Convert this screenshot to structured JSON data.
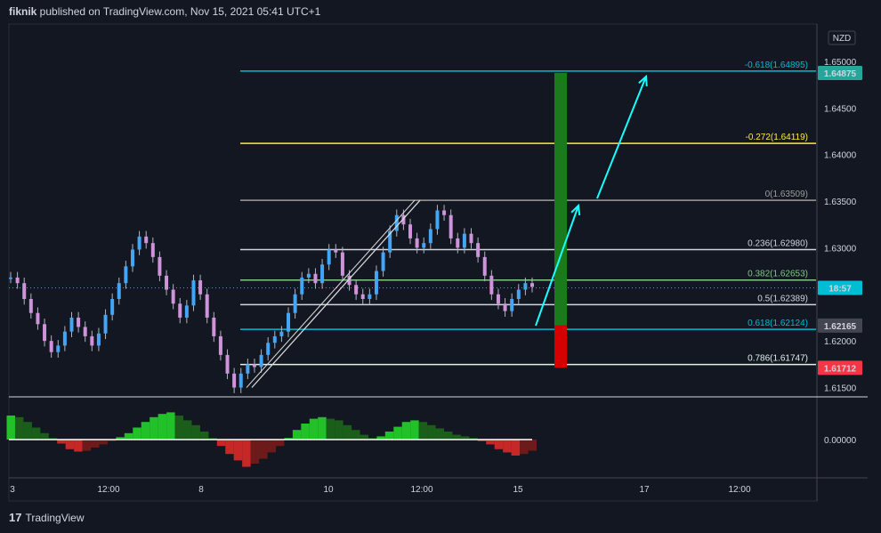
{
  "header": {
    "user": "fiknik",
    "text": " published on TradingView.com, Nov 15, 2021 05:41 UTC+1"
  },
  "footer": {
    "brand": "TradingView"
  },
  "currency_badge": "NZD",
  "price_badges": [
    {
      "text": "1.64875",
      "value": 1.64875,
      "color": "#26a69a"
    },
    {
      "text": "18:57",
      "value": 1.6257,
      "color": "#00bcd4"
    },
    {
      "text": "1.62165",
      "value": 1.62165,
      "color": "#434651"
    },
    {
      "text": "1.61712",
      "value": 1.61712,
      "color": "#f23645"
    }
  ],
  "chart_data": {
    "type": "line",
    "title": "",
    "symbol": "NZD",
    "ylim": [
      1.614,
      1.654
    ],
    "y_ticks": [
      {
        "label": "1.65000",
        "value": 1.65
      },
      {
        "label": "1.64500",
        "value": 1.645
      },
      {
        "label": "1.64000",
        "value": 1.64
      },
      {
        "label": "1.63500",
        "value": 1.635
      },
      {
        "label": "1.63000",
        "value": 1.63
      },
      {
        "label": "1.62000",
        "value": 1.62
      },
      {
        "label": "1.61500",
        "value": 1.615
      }
    ],
    "x_ticks": [
      "3",
      "12:00",
      "8",
      "10",
      "12:00",
      "15",
      "17",
      "12:00"
    ],
    "fib_levels": [
      {
        "label": "-0.618(1.64895)",
        "value": 1.64895,
        "color": "#00bcd4"
      },
      {
        "label": "-0.272(1.64119)",
        "value": 1.64119,
        "color": "#ffeb3b"
      },
      {
        "label": "0(1.63509)",
        "value": 1.63509,
        "color": "#9e9e9e"
      },
      {
        "label": "0.236(1.62980)",
        "value": 1.6298,
        "color": "#d1d4dc"
      },
      {
        "label": "0.382(1.62653)",
        "value": 1.62653,
        "color": "#81c784"
      },
      {
        "label": "0.5(1.62389)",
        "value": 1.62389,
        "color": "#d1d4dc"
      },
      {
        "label": "0.618(1.62124)",
        "value": 1.62124,
        "color": "#00bcd4"
      },
      {
        "label": "0.786(1.61747)",
        "value": 1.61747,
        "color": "#e0f2e9"
      }
    ],
    "price_series": [
      1.6268,
      1.6262,
      1.6245,
      1.623,
      1.6218,
      1.62,
      1.6188,
      1.6195,
      1.621,
      1.6225,
      1.6215,
      1.6205,
      1.6195,
      1.6208,
      1.6228,
      1.6245,
      1.6262,
      1.628,
      1.6298,
      1.6312,
      1.6305,
      1.629,
      1.627,
      1.6255,
      1.624,
      1.6225,
      1.6238,
      1.6265,
      1.625,
      1.6225,
      1.6205,
      1.6185,
      1.6165,
      1.615,
      1.6165,
      1.6175,
      1.6172,
      1.6185,
      1.6198,
      1.6205,
      1.621,
      1.623,
      1.625,
      1.6268,
      1.6272,
      1.6262,
      1.6282,
      1.6298,
      1.6295,
      1.627,
      1.626,
      1.625,
      1.6245,
      1.625,
      1.6275,
      1.6295,
      1.6318,
      1.6335,
      1.6325,
      1.631,
      1.63,
      1.6305,
      1.632,
      1.634,
      1.6335,
      1.631,
      1.63,
      1.6315,
      1.6305,
      1.629,
      1.627,
      1.625,
      1.624,
      1.6232,
      1.6245,
      1.6255,
      1.6262,
      1.6258
    ],
    "oscillator": [
      30,
      28,
      22,
      15,
      8,
      2,
      -5,
      -12,
      -15,
      -14,
      -10,
      -6,
      -2,
      3,
      8,
      15,
      22,
      28,
      32,
      34,
      30,
      24,
      18,
      10,
      2,
      -8,
      -18,
      -26,
      -34,
      -30,
      -24,
      -16,
      -8,
      2,
      12,
      20,
      26,
      28,
      26,
      24,
      18,
      12,
      6,
      2,
      4,
      10,
      16,
      22,
      24,
      22,
      18,
      14,
      10,
      6,
      4,
      2,
      -2,
      -6,
      -12,
      -16,
      -20,
      -18,
      -14
    ],
    "projection": {
      "green_box": [
        1.64875,
        1.62165
      ],
      "red_box": [
        1.62165,
        1.61712
      ]
    }
  }
}
